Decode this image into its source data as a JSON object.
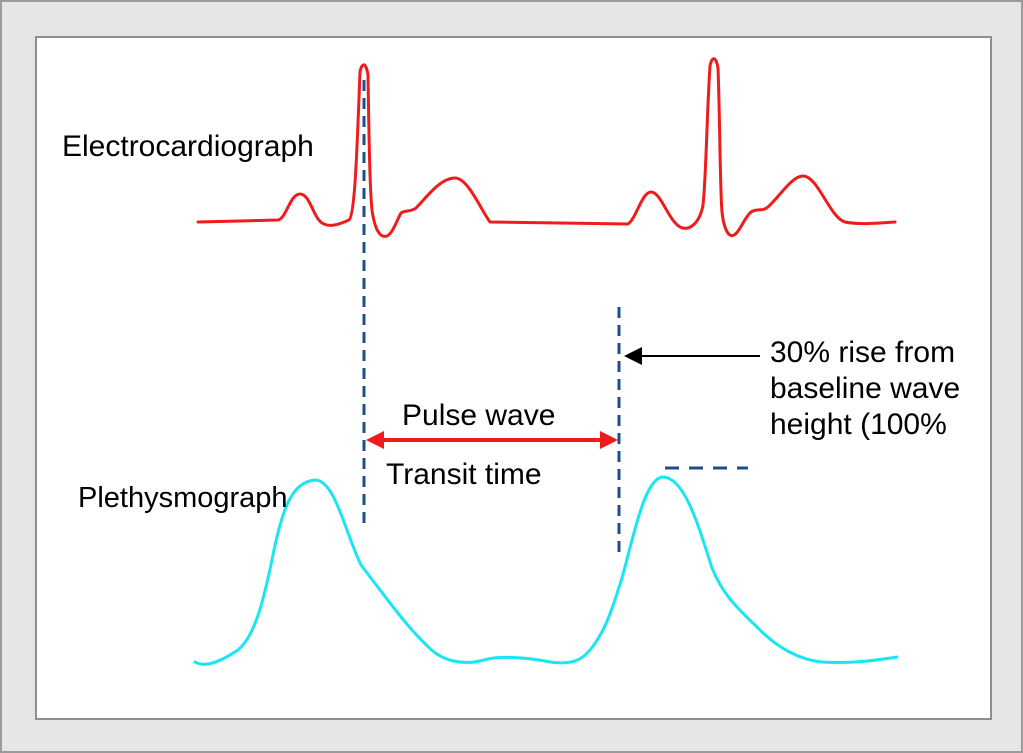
{
  "labels": {
    "ecg": "Electrocardiograph",
    "plethysmograph": "Plethysmograph",
    "pulse_wave": "Pulse wave",
    "transit_time": "Transit time"
  },
  "annotation": {
    "lines": [
      "30% rise from",
      "baseline wave",
      "height (100%"
    ]
  },
  "colors": {
    "ecg_trace": "#ee1c1c",
    "pleth_trace": "#19e6f2",
    "marker_dashes": "#1f4e8c",
    "double_arrow": "#ee1c1c",
    "pointer_arrow": "#000000",
    "panel_background": "#ffffff",
    "outer_background": "#e6e6e6"
  }
}
